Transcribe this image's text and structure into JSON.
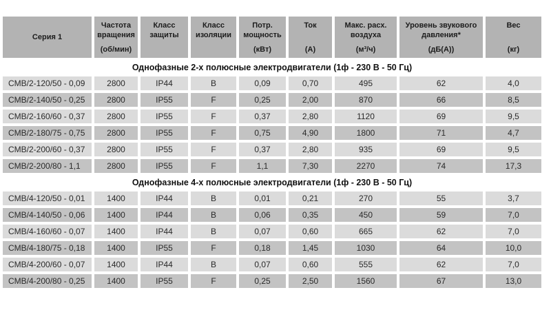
{
  "table": {
    "columns": [
      {
        "label": "Серия 1",
        "unit": ""
      },
      {
        "label": "Частота вращения",
        "unit": "(об/мин)"
      },
      {
        "label": "Класс защиты",
        "unit": ""
      },
      {
        "label": "Класс изоляции",
        "unit": ""
      },
      {
        "label": "Потр. мощность",
        "unit": "(кВт)"
      },
      {
        "label": "Ток",
        "unit": "(А)"
      },
      {
        "label": "Макс. расх. воздуха",
        "unit": "(м³/ч)"
      },
      {
        "label": "Уровень звукового давления*",
        "unit": "(дБ(А))"
      },
      {
        "label": "Вес",
        "unit": "(кг)"
      }
    ],
    "sections": [
      {
        "title": "Однофазные 2-х полюсные электродвигатели (1ф - 230 В - 50 Гц)",
        "rows": [
          [
            "CMB/2-120/50 - 0,09",
            "2800",
            "IP44",
            "B",
            "0,09",
            "0,70",
            "495",
            "62",
            "4,0"
          ],
          [
            "CMB/2-140/50 - 0,25",
            "2800",
            "IP55",
            "F",
            "0,25",
            "2,00",
            "870",
            "66",
            "8,5"
          ],
          [
            "CMB/2-160/60 - 0,37",
            "2800",
            "IP55",
            "F",
            "0,37",
            "2,80",
            "1120",
            "69",
            "9,5"
          ],
          [
            "CMB/2-180/75 - 0,75",
            "2800",
            "IP55",
            "F",
            "0,75",
            "4,90",
            "1800",
            "71",
            "4,7"
          ],
          [
            "CMB/2-200/60 - 0,37",
            "2800",
            "IP55",
            "F",
            "0,37",
            "2,80",
            "935",
            "69",
            "9,5"
          ],
          [
            "CMB/2-200/80 - 1,1",
            "2800",
            "IP55",
            "F",
            "1,1",
            "7,30",
            "2270",
            "74",
            "17,3"
          ]
        ]
      },
      {
        "title": "Однофазные 4-х полюсные электродвигатели (1ф - 230 В - 50 Гц)",
        "rows": [
          [
            "CMB/4-120/50 - 0,01",
            "1400",
            "IP44",
            "B",
            "0,01",
            "0,21",
            "270",
            "55",
            "3,7"
          ],
          [
            "CMB/4-140/50 - 0,06",
            "1400",
            "IP44",
            "B",
            "0,06",
            "0,35",
            "450",
            "59",
            "7,0"
          ],
          [
            "CMB/4-160/60 - 0,07",
            "1400",
            "IP44",
            "B",
            "0,07",
            "0,60",
            "665",
            "62",
            "7,0"
          ],
          [
            "CMB/4-180/75 - 0,18",
            "1400",
            "IP55",
            "F",
            "0,18",
            "1,45",
            "1030",
            "64",
            "10,0"
          ],
          [
            "CMB/4-200/60 - 0,07",
            "1400",
            "IP44",
            "B",
            "0,07",
            "0,60",
            "555",
            "62",
            "7,0"
          ],
          [
            "CMB/4-200/80 - 0,25",
            "1400",
            "IP55",
            "F",
            "0,25",
            "2,50",
            "1560",
            "67",
            "13,0"
          ]
        ]
      }
    ],
    "colors": {
      "header_bg": "#b3b3b3",
      "row_light": "#dbdbdb",
      "row_dark": "#c3c3c3",
      "section_text": "#111111",
      "data_text": "#2a2a2a"
    }
  }
}
